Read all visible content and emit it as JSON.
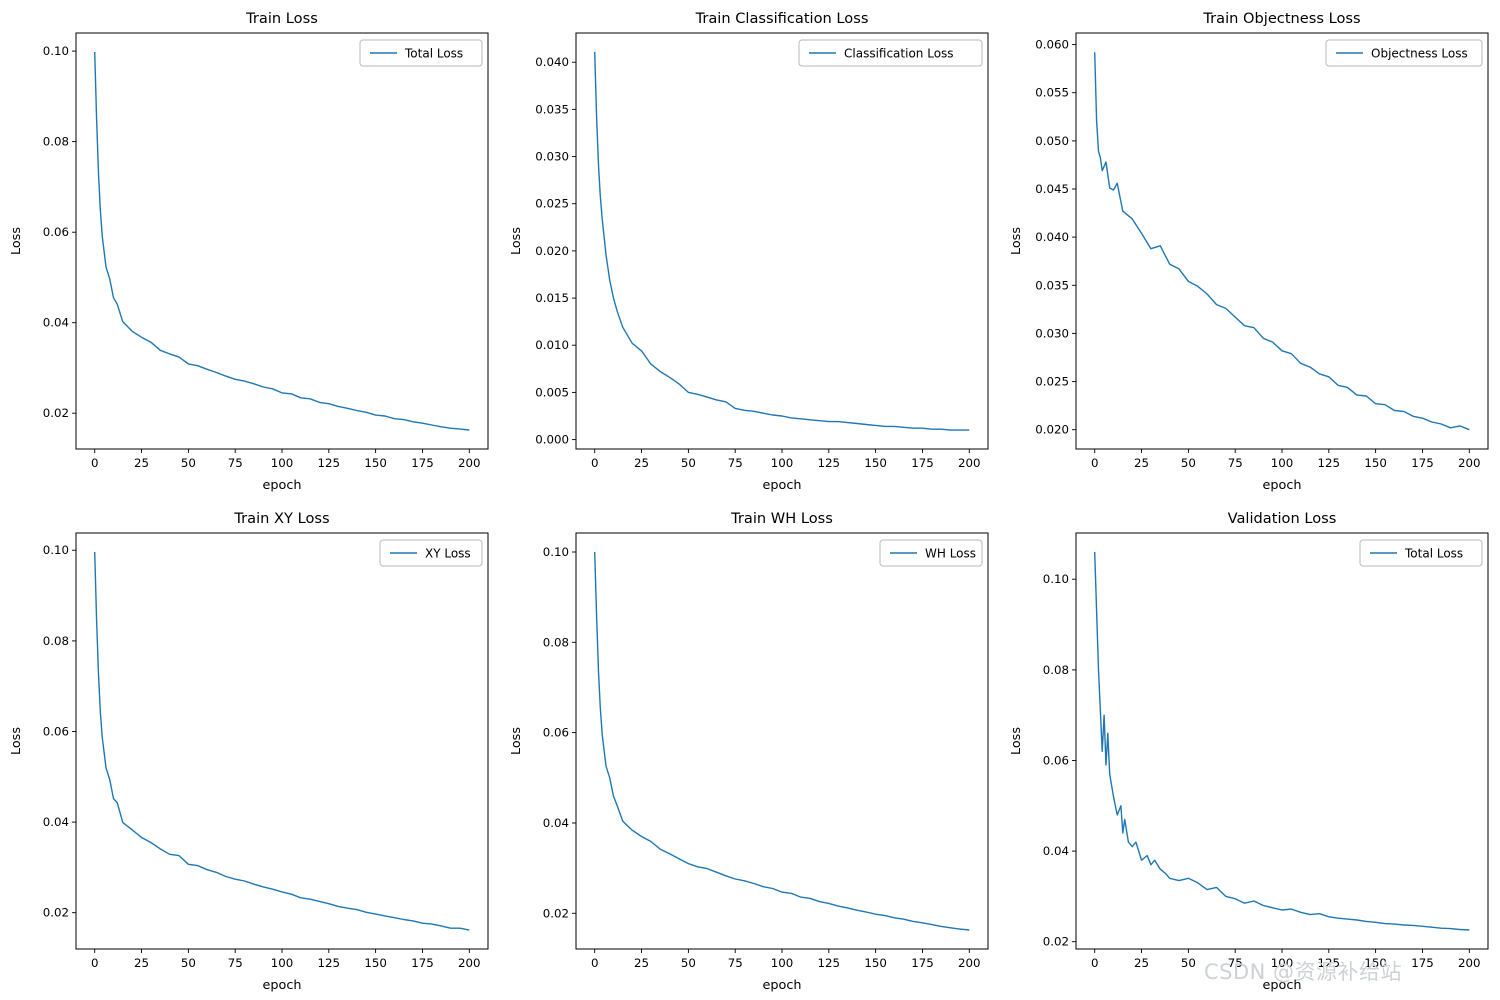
{
  "watermark": {
    "text": "CSDN @资源补给站",
    "color": "#cdd2d6"
  },
  "line_color": "#1f77b4",
  "chart_data": [
    {
      "type": "line",
      "title": "Train Loss",
      "xlabel": "epoch",
      "ylabel": "Loss",
      "legend": [
        "Total Loss"
      ],
      "legend_position": "upper right",
      "grid": false,
      "xlim": [
        -10,
        210
      ],
      "ylim": [
        0.0121,
        0.104
      ],
      "xticks": [
        0,
        25,
        50,
        75,
        100,
        125,
        150,
        175,
        200
      ],
      "yticks": [
        0.02,
        0.04,
        0.06,
        0.08,
        0.1
      ],
      "ytick_labels": [
        "0.02",
        "0.04",
        "0.06",
        "0.08",
        "0.10"
      ],
      "x": [
        0,
        1,
        2,
        3,
        4,
        6,
        8,
        10,
        12,
        15,
        20,
        25,
        30,
        35,
        40,
        45,
        50,
        55,
        60,
        65,
        70,
        75,
        80,
        85,
        90,
        95,
        100,
        105,
        110,
        115,
        120,
        125,
        130,
        135,
        140,
        145,
        150,
        155,
        160,
        165,
        170,
        175,
        180,
        185,
        190,
        195,
        200
      ],
      "y": [
        0.0998,
        0.085,
        0.073,
        0.065,
        0.0592,
        0.0523,
        0.0497,
        0.0455,
        0.0441,
        0.0402,
        0.0381,
        0.0368,
        0.0357,
        0.0339,
        0.0331,
        0.0324,
        0.0309,
        0.0305,
        0.0297,
        0.029,
        0.0282,
        0.0275,
        0.0271,
        0.0265,
        0.0258,
        0.0254,
        0.0245,
        0.0243,
        0.0234,
        0.0232,
        0.0224,
        0.0221,
        0.0215,
        0.0211,
        0.0206,
        0.0202,
        0.0196,
        0.0194,
        0.0188,
        0.0186,
        0.0181,
        0.0178,
        0.0174,
        0.017,
        0.0167,
        0.0165,
        0.0163
      ]
    },
    {
      "type": "line",
      "title": "Train Classification Loss",
      "xlabel": "epoch",
      "ylabel": "Loss",
      "legend": [
        "Classification Loss"
      ],
      "legend_position": "upper right",
      "grid": false,
      "xlim": [
        -10,
        210
      ],
      "ylim": [
        -0.001,
        0.0431
      ],
      "xticks": [
        0,
        25,
        50,
        75,
        100,
        125,
        150,
        175,
        200
      ],
      "yticks": [
        0.0,
        0.005,
        0.01,
        0.015,
        0.02,
        0.025,
        0.03,
        0.035,
        0.04
      ],
      "ytick_labels": [
        "0.000",
        "0.005",
        "0.010",
        "0.015",
        "0.020",
        "0.025",
        "0.030",
        "0.035",
        "0.040"
      ],
      "x": [
        0,
        1,
        2,
        3,
        4,
        6,
        8,
        10,
        12,
        15,
        20,
        25,
        30,
        35,
        40,
        45,
        50,
        55,
        60,
        65,
        70,
        75,
        80,
        85,
        90,
        95,
        100,
        105,
        110,
        115,
        120,
        125,
        130,
        135,
        140,
        145,
        150,
        155,
        160,
        165,
        170,
        175,
        180,
        185,
        190,
        195,
        200
      ],
      "y": [
        0.0411,
        0.0342,
        0.0291,
        0.0258,
        0.0234,
        0.0196,
        0.0169,
        0.015,
        0.0136,
        0.0119,
        0.0102,
        0.0094,
        0.008,
        0.0072,
        0.0066,
        0.0059,
        0.005,
        0.0048,
        0.0045,
        0.0042,
        0.004,
        0.0033,
        0.0031,
        0.003,
        0.0028,
        0.0026,
        0.0025,
        0.0023,
        0.0022,
        0.0021,
        0.002,
        0.0019,
        0.0019,
        0.0018,
        0.0017,
        0.0016,
        0.0015,
        0.0014,
        0.0014,
        0.0013,
        0.0012,
        0.0012,
        0.0011,
        0.0011,
        0.001,
        0.001,
        0.001
      ]
    },
    {
      "type": "line",
      "title": "Train Objectness Loss",
      "xlabel": "epoch",
      "ylabel": "Loss",
      "legend": [
        "Objectness Loss"
      ],
      "legend_position": "upper right",
      "grid": false,
      "xlim": [
        -10,
        210
      ],
      "ylim": [
        0.018,
        0.0612
      ],
      "xticks": [
        0,
        25,
        50,
        75,
        100,
        125,
        150,
        175,
        200
      ],
      "yticks": [
        0.02,
        0.025,
        0.03,
        0.035,
        0.04,
        0.045,
        0.05,
        0.055,
        0.06
      ],
      "ytick_labels": [
        "0.020",
        "0.025",
        "0.030",
        "0.035",
        "0.040",
        "0.045",
        "0.050",
        "0.055",
        "0.060"
      ],
      "x": [
        0,
        1,
        2,
        3,
        4,
        6,
        8,
        10,
        12,
        15,
        20,
        25,
        30,
        35,
        40,
        45,
        50,
        55,
        60,
        65,
        70,
        75,
        80,
        85,
        90,
        95,
        100,
        105,
        110,
        115,
        120,
        125,
        130,
        135,
        140,
        145,
        150,
        155,
        160,
        165,
        170,
        175,
        180,
        185,
        190,
        195,
        200
      ],
      "y": [
        0.0592,
        0.0521,
        0.0489,
        0.0483,
        0.0469,
        0.0478,
        0.0451,
        0.0449,
        0.0456,
        0.0427,
        0.0419,
        0.0404,
        0.0388,
        0.0391,
        0.0372,
        0.0367,
        0.0354,
        0.0349,
        0.0341,
        0.033,
        0.0326,
        0.0317,
        0.0308,
        0.0306,
        0.0295,
        0.0291,
        0.0282,
        0.0279,
        0.0269,
        0.0265,
        0.0258,
        0.0255,
        0.0246,
        0.0244,
        0.0236,
        0.0235,
        0.0227,
        0.0226,
        0.022,
        0.0219,
        0.0214,
        0.0212,
        0.0208,
        0.0206,
        0.0202,
        0.0204,
        0.02
      ]
    },
    {
      "type": "line",
      "title": "Train XY Loss",
      "xlabel": "epoch",
      "ylabel": "Loss",
      "legend": [
        "XY Loss"
      ],
      "legend_position": "upper right",
      "grid": false,
      "xlim": [
        -10,
        210
      ],
      "ylim": [
        0.012,
        0.1038
      ],
      "xticks": [
        0,
        25,
        50,
        75,
        100,
        125,
        150,
        175,
        200
      ],
      "yticks": [
        0.02,
        0.04,
        0.06,
        0.08,
        0.1
      ],
      "ytick_labels": [
        "0.02",
        "0.04",
        "0.06",
        "0.08",
        "0.10"
      ],
      "x": [
        0,
        1,
        2,
        3,
        4,
        6,
        8,
        10,
        12,
        15,
        20,
        25,
        30,
        35,
        40,
        45,
        50,
        55,
        60,
        65,
        70,
        75,
        80,
        85,
        90,
        95,
        100,
        105,
        110,
        115,
        120,
        125,
        130,
        135,
        140,
        145,
        150,
        155,
        160,
        165,
        170,
        175,
        180,
        185,
        190,
        195,
        200
      ],
      "y": [
        0.0996,
        0.0845,
        0.0726,
        0.0645,
        0.0588,
        0.052,
        0.0494,
        0.0452,
        0.0443,
        0.0399,
        0.0383,
        0.0366,
        0.0355,
        0.0341,
        0.0329,
        0.0326,
        0.0307,
        0.0304,
        0.0295,
        0.0289,
        0.028,
        0.0274,
        0.027,
        0.0263,
        0.0257,
        0.0252,
        0.0246,
        0.0241,
        0.0233,
        0.023,
        0.0225,
        0.022,
        0.0214,
        0.021,
        0.0207,
        0.0201,
        0.0197,
        0.0193,
        0.0189,
        0.0185,
        0.0182,
        0.0177,
        0.0175,
        0.0171,
        0.0166,
        0.0166,
        0.0162
      ]
    },
    {
      "type": "line",
      "title": "Train WH Loss",
      "xlabel": "epoch",
      "ylabel": "Loss",
      "legend": [
        "WH Loss"
      ],
      "legend_position": "upper right",
      "grid": false,
      "xlim": [
        -10,
        210
      ],
      "ylim": [
        0.0121,
        0.1042
      ],
      "xticks": [
        0,
        25,
        50,
        75,
        100,
        125,
        150,
        175,
        200
      ],
      "yticks": [
        0.02,
        0.04,
        0.06,
        0.08,
        0.1
      ],
      "ytick_labels": [
        "0.02",
        "0.04",
        "0.06",
        "0.08",
        "0.10"
      ],
      "x": [
        0,
        1,
        2,
        3,
        4,
        6,
        8,
        10,
        12,
        15,
        20,
        25,
        30,
        35,
        40,
        45,
        50,
        55,
        60,
        65,
        70,
        75,
        80,
        85,
        90,
        95,
        100,
        105,
        110,
        115,
        120,
        125,
        130,
        135,
        140,
        145,
        150,
        155,
        160,
        165,
        170,
        175,
        180,
        185,
        190,
        195,
        200
      ],
      "y": [
        0.1,
        0.0858,
        0.0735,
        0.0655,
        0.0596,
        0.0526,
        0.05,
        0.0459,
        0.0438,
        0.0404,
        0.0384,
        0.037,
        0.0359,
        0.0342,
        0.0332,
        0.0321,
        0.031,
        0.0303,
        0.0299,
        0.0291,
        0.0283,
        0.0276,
        0.0272,
        0.0266,
        0.0259,
        0.0255,
        0.0247,
        0.0244,
        0.0236,
        0.0233,
        0.0226,
        0.0222,
        0.0216,
        0.0212,
        0.0207,
        0.0203,
        0.0198,
        0.0195,
        0.019,
        0.0187,
        0.0182,
        0.0179,
        0.0175,
        0.0171,
        0.0168,
        0.0165,
        0.0163
      ]
    },
    {
      "type": "line",
      "title": "Validation Loss",
      "xlabel": "epoch",
      "ylabel": "Loss",
      "legend": [
        "Total Loss"
      ],
      "legend_position": "upper right",
      "grid": false,
      "xlim": [
        -10,
        210
      ],
      "ylim": [
        0.0184,
        0.1102
      ],
      "xticks": [
        0,
        25,
        50,
        75,
        100,
        125,
        150,
        175,
        200
      ],
      "yticks": [
        0.02,
        0.04,
        0.06,
        0.08,
        0.1
      ],
      "ytick_labels": [
        "0.02",
        "0.04",
        "0.06",
        "0.08",
        "0.10"
      ],
      "x": [
        0,
        2,
        4,
        5,
        6,
        7,
        8,
        10,
        12,
        14,
        15,
        16,
        18,
        20,
        22,
        25,
        28,
        30,
        32,
        35,
        38,
        40,
        45,
        50,
        55,
        60,
        65,
        70,
        75,
        80,
        85,
        90,
        95,
        100,
        105,
        110,
        115,
        120,
        125,
        130,
        135,
        140,
        145,
        150,
        155,
        160,
        165,
        170,
        175,
        180,
        185,
        190,
        195,
        200
      ],
      "y": [
        0.106,
        0.08,
        0.062,
        0.07,
        0.059,
        0.066,
        0.057,
        0.052,
        0.048,
        0.05,
        0.044,
        0.047,
        0.042,
        0.041,
        0.042,
        0.038,
        0.039,
        0.037,
        0.038,
        0.036,
        0.035,
        0.034,
        0.0335,
        0.034,
        0.033,
        0.0315,
        0.032,
        0.03,
        0.0295,
        0.0285,
        0.029,
        0.028,
        0.0275,
        0.027,
        0.0272,
        0.0265,
        0.026,
        0.0262,
        0.0255,
        0.0252,
        0.025,
        0.0248,
        0.0245,
        0.0243,
        0.024,
        0.0239,
        0.0237,
        0.0236,
        0.0234,
        0.0232,
        0.023,
        0.0229,
        0.0227,
        0.0226
      ]
    }
  ]
}
